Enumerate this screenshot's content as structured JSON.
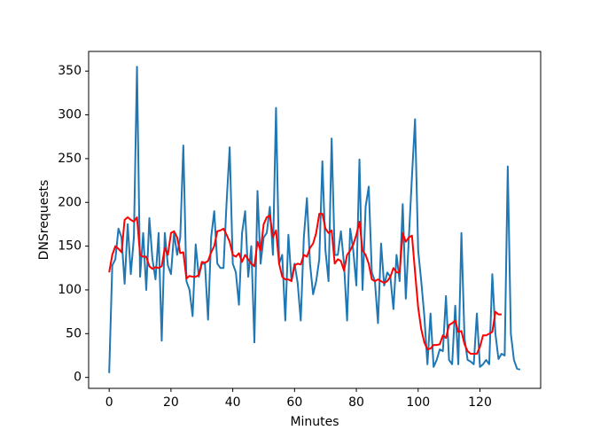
{
  "chart_data": {
    "type": "line",
    "x_label": "Minutes",
    "y_label": "DNSrequests",
    "x": [
      0,
      1,
      2,
      3,
      4,
      5,
      6,
      7,
      8,
      9,
      10,
      11,
      12,
      13,
      14,
      15,
      16,
      17,
      18,
      19,
      20,
      21,
      22,
      23,
      24,
      25,
      26,
      27,
      28,
      29,
      30,
      31,
      32,
      33,
      34,
      35,
      36,
      37,
      38,
      39,
      40,
      41,
      42,
      43,
      44,
      45,
      46,
      47,
      48,
      49,
      50,
      51,
      52,
      53,
      54,
      55,
      56,
      57,
      58,
      59,
      60,
      61,
      62,
      63,
      64,
      65,
      66,
      67,
      68,
      69,
      70,
      71,
      72,
      73,
      74,
      75,
      76,
      77,
      78,
      79,
      80,
      81,
      82,
      83,
      84,
      85,
      86,
      87,
      88,
      89,
      90,
      91,
      92,
      93,
      94,
      95,
      96,
      97,
      98,
      99,
      100,
      101,
      102,
      103,
      104,
      105,
      106,
      107,
      108,
      109,
      110,
      111,
      112,
      113,
      114,
      115,
      116,
      117,
      118,
      119,
      120,
      121,
      122,
      123,
      124,
      125,
      126,
      127,
      128,
      129,
      130,
      131,
      132,
      133
    ],
    "series": [
      {
        "color": "#1f77b4",
        "values": [
          5,
          128,
          135,
          170,
          160,
          107,
          175,
          118,
          160,
          355,
          115,
          165,
          100,
          182,
          135,
          112,
          165,
          42,
          165,
          128,
          118,
          165,
          140,
          160,
          265,
          110,
          100,
          70,
          152,
          115,
          130,
          130,
          66,
          160,
          190,
          130,
          125,
          125,
          200,
          263,
          130,
          120,
          83,
          165,
          190,
          115,
          150,
          40,
          213,
          130,
          160,
          165,
          195,
          140,
          308,
          130,
          140,
          65,
          163,
          110,
          130,
          108,
          65,
          160,
          205,
          130,
          95,
          110,
          135,
          247,
          145,
          110,
          273,
          140,
          140,
          167,
          130,
          65,
          170,
          145,
          105,
          249,
          100,
          195,
          218,
          120,
          110,
          62,
          153,
          105,
          120,
          115,
          78,
          140,
          110,
          198,
          90,
          160,
          230,
          295,
          145,
          110,
          70,
          15,
          73,
          12,
          20,
          32,
          30,
          93,
          20,
          15,
          82,
          15,
          165,
          45,
          20,
          18,
          15,
          73,
          12,
          15,
          20,
          15,
          118,
          50,
          21,
          27,
          25,
          241,
          50,
          20,
          10,
          9
        ]
      },
      {
        "color": "#ff0000",
        "values": [
          120,
          140,
          150,
          147,
          143,
          180,
          183,
          180,
          178,
          183,
          140,
          138,
          138,
          127,
          124,
          126,
          125,
          127,
          148,
          140,
          165,
          167,
          160,
          142,
          143,
          113,
          116,
          115,
          115,
          117,
          132,
          131,
          133,
          143,
          150,
          167,
          168,
          170,
          163,
          155,
          140,
          138,
          142,
          132,
          140,
          135,
          130,
          127,
          155,
          145,
          175,
          183,
          185,
          160,
          168,
          130,
          115,
          112,
          112,
          110,
          128,
          130,
          129,
          140,
          138,
          148,
          153,
          165,
          187,
          187,
          170,
          165,
          168,
          130,
          135,
          133,
          122,
          140,
          145,
          152,
          163,
          178,
          145,
          140,
          130,
          112,
          110,
          112,
          110,
          108,
          110,
          115,
          125,
          120,
          120,
          165,
          155,
          160,
          162,
          120,
          80,
          55,
          40,
          32,
          33,
          37,
          37,
          38,
          48,
          45,
          60,
          62,
          65,
          52,
          53,
          38,
          30,
          27,
          27,
          27,
          35,
          48,
          48,
          50,
          52,
          75,
          72,
          72,
          null,
          null,
          null,
          null,
          null,
          null
        ]
      }
    ],
    "xlim": [
      -6.65,
      139.65
    ],
    "xticks": [
      0,
      20,
      40,
      60,
      80,
      100,
      120
    ],
    "ylim": [
      -12.5,
      372.5
    ],
    "yticks": [
      0,
      50,
      100,
      150,
      200,
      250,
      300,
      350
    ]
  }
}
